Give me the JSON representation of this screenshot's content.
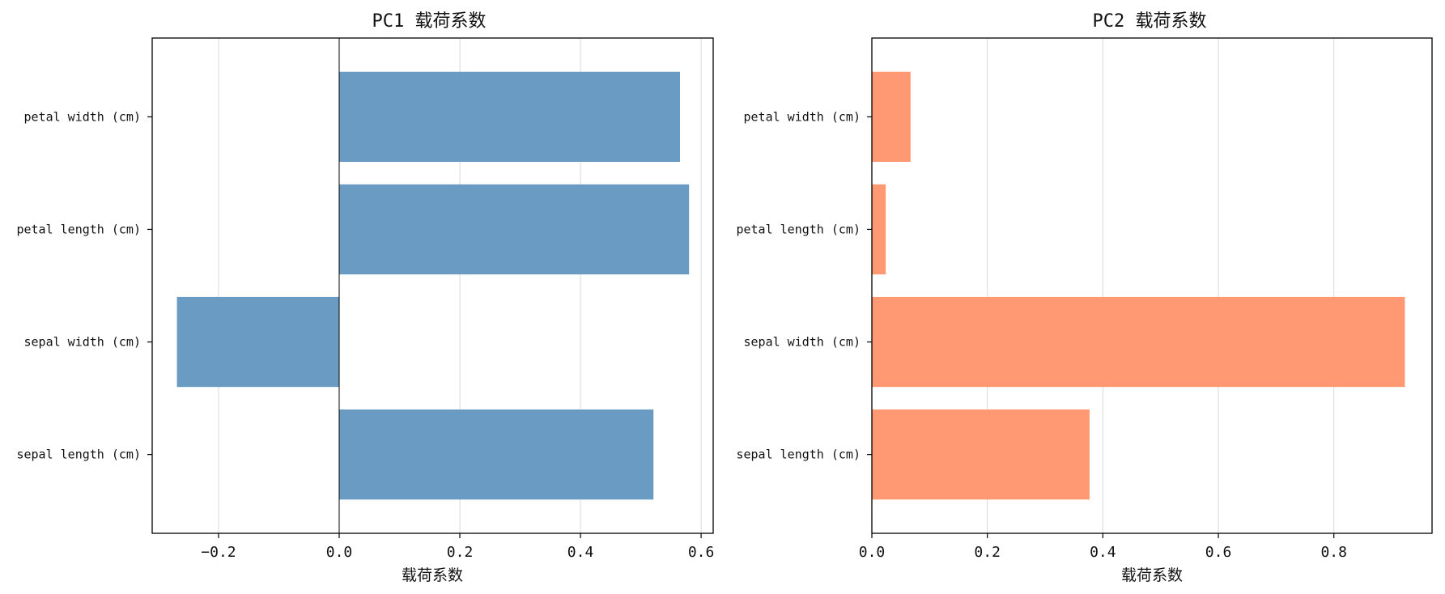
{
  "chart_data": [
    {
      "type": "bar",
      "orientation": "horizontal",
      "title": "PC1 载荷系数",
      "xlabel": "载荷系数",
      "ylabel": "",
      "categories": [
        "sepal length (cm)",
        "sepal width (cm)",
        "petal length (cm)",
        "petal width (cm)"
      ],
      "values": [
        0.521,
        -0.269,
        0.58,
        0.565
      ],
      "xlim": [
        -0.31,
        0.62
      ],
      "xticks": [
        -0.2,
        0.0,
        0.2,
        0.4,
        0.6
      ],
      "xtick_labels": [
        "−0.2",
        "0.0",
        "0.2",
        "0.4",
        "0.6"
      ],
      "bar_color": "#6a9bc3",
      "zero_line": true,
      "grid": "x"
    },
    {
      "type": "bar",
      "orientation": "horizontal",
      "title": "PC2 载荷系数",
      "xlabel": "载荷系数",
      "ylabel": "",
      "categories": [
        "sepal length (cm)",
        "sepal width (cm)",
        "petal length (cm)",
        "petal width (cm)"
      ],
      "values": [
        0.377,
        0.923,
        0.024,
        0.067
      ],
      "xlim": [
        0.0,
        0.97
      ],
      "xticks": [
        0.0,
        0.2,
        0.4,
        0.6,
        0.8
      ],
      "xtick_labels": [
        "0.0",
        "0.2",
        "0.4",
        "0.6",
        "0.8"
      ],
      "bar_color": "#ff9973",
      "zero_line": false,
      "grid": "x"
    }
  ]
}
